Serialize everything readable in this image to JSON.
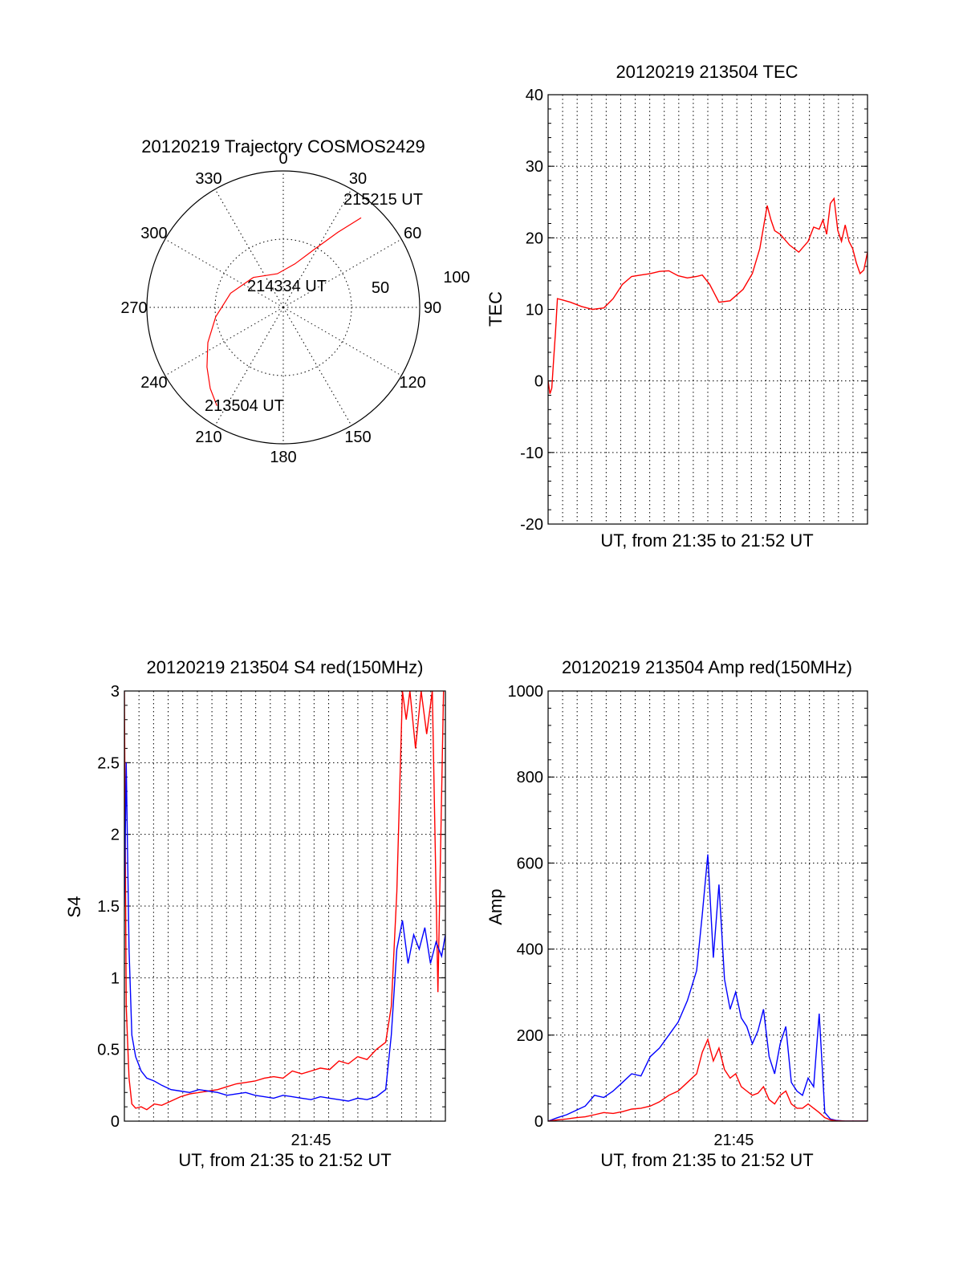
{
  "colors": {
    "red": "#ff0000",
    "blue": "#0000ff",
    "axis": "#000000"
  },
  "chart_data": [
    {
      "id": "trajectory",
      "type": "polar",
      "title": "20120219 Trajectory COSMOS2429",
      "angle_labels": [
        {
          "deg": 0,
          "text": "0"
        },
        {
          "deg": 30,
          "text": "30"
        },
        {
          "deg": 60,
          "text": "60"
        },
        {
          "deg": 90,
          "text": "90"
        },
        {
          "deg": 120,
          "text": "120"
        },
        {
          "deg": 150,
          "text": "150"
        },
        {
          "deg": 180,
          "text": "180"
        },
        {
          "deg": 210,
          "text": "210"
        },
        {
          "deg": 240,
          "text": "240"
        },
        {
          "deg": 270,
          "text": "270"
        },
        {
          "deg": 300,
          "text": "300"
        },
        {
          "deg": 330,
          "text": "330"
        }
      ],
      "radial_labels": [
        {
          "r": 50,
          "text": "50"
        },
        {
          "r": 100,
          "text": "100"
        }
      ],
      "r_max": 100,
      "rings": [
        50
      ],
      "annotations": [
        {
          "text": "215215 UT"
        },
        {
          "text": "214334 UT"
        },
        {
          "text": "213504 UT"
        }
      ],
      "track": {
        "color": "red",
        "points": [
          [
            214,
            87
          ],
          [
            222,
            80
          ],
          [
            232,
            71
          ],
          [
            245,
            61
          ],
          [
            262,
            50
          ],
          [
            285,
            40
          ],
          [
            315,
            31
          ],
          [
            350,
            25
          ],
          [
            15,
            33
          ],
          [
            28,
            48
          ],
          [
            36,
            68
          ],
          [
            41,
            87
          ]
        ]
      }
    },
    {
      "id": "tec",
      "type": "line",
      "title": "20120219 213504 TEC",
      "ylabel": "TEC",
      "xlabel": "UT, from 21:35 to 21:52 UT",
      "x_unit": "minutes after 21:35",
      "xlim": [
        0,
        17.2
      ],
      "ylim": [
        -20,
        40
      ],
      "yticks": [
        -20,
        -10,
        0,
        10,
        20,
        30,
        40
      ],
      "xticks": [],
      "grid": true,
      "series": [
        {
          "color": "red",
          "x": [
            0,
            0.1,
            0.2,
            0.3,
            0.4,
            0.5,
            0.8,
            1.2,
            1.8,
            2.4,
            3.0,
            3.5,
            4.0,
            4.5,
            5.0,
            5.5,
            6.0,
            6.5,
            7.0,
            7.5,
            8.0,
            8.3,
            8.7,
            9.2,
            9.8,
            10.5,
            11.0,
            11.4,
            11.8,
            12.0,
            12.2,
            12.5,
            13.0,
            13.5,
            14.0,
            14.3,
            14.6,
            14.8,
            15.0,
            15.2,
            15.4,
            15.6,
            15.8,
            16.0,
            16.2,
            16.4,
            16.6,
            16.8,
            17.0,
            17.2
          ],
          "values": [
            0,
            -1.8,
            -1,
            3,
            7,
            11.5,
            11.3,
            11,
            10.4,
            10,
            10.2,
            11.5,
            13.5,
            14.6,
            14.8,
            15,
            15.3,
            15.4,
            14.7,
            14.4,
            14.6,
            14.8,
            13.5,
            11,
            11.2,
            12.8,
            15,
            18.5,
            24.5,
            22.5,
            21,
            20.5,
            19,
            18,
            19.5,
            21.5,
            21.2,
            22.5,
            20.5,
            24.8,
            25.5,
            21,
            19.5,
            21.8,
            19.5,
            18.5,
            16.5,
            15,
            15.5,
            18
          ]
        }
      ]
    },
    {
      "id": "s4",
      "type": "line",
      "title": "20120219 213504 S4 red(150MHz)",
      "ylabel": "S4",
      "xlabel": "UT, from 21:35 to 21:52 UT",
      "x_unit": "minutes after 21:35",
      "xlim": [
        0,
        17.2
      ],
      "ylim": [
        0,
        3
      ],
      "yticks": [
        0,
        0.5,
        1,
        1.5,
        2,
        2.5,
        3
      ],
      "ytick_labels": [
        "0",
        "0.5",
        "1",
        "1.5",
        "2",
        "2.5",
        "3"
      ],
      "xticks": [
        {
          "x": 10,
          "text": "21:45"
        }
      ],
      "grid": true,
      "series": [
        {
          "color": "red",
          "x": [
            0,
            0.1,
            0.25,
            0.4,
            0.6,
            0.9,
            1.2,
            1.6,
            2.0,
            2.5,
            3.0,
            3.5,
            4.0,
            4.5,
            5.0,
            5.5,
            6.0,
            6.5,
            7.0,
            7.5,
            8.0,
            8.5,
            9.0,
            9.5,
            10.0,
            10.5,
            11.0,
            11.5,
            12.0,
            12.5,
            13.0,
            13.5,
            14.0,
            14.3,
            14.6,
            14.9,
            15.1,
            15.3,
            15.6,
            15.9,
            16.2,
            16.5,
            16.8,
            17.1
          ],
          "values": [
            3,
            0.8,
            0.3,
            0.12,
            0.09,
            0.1,
            0.08,
            0.12,
            0.11,
            0.14,
            0.17,
            0.19,
            0.2,
            0.21,
            0.22,
            0.24,
            0.26,
            0.27,
            0.28,
            0.3,
            0.31,
            0.3,
            0.35,
            0.33,
            0.35,
            0.37,
            0.36,
            0.42,
            0.4,
            0.45,
            0.43,
            0.5,
            0.55,
            0.8,
            1.6,
            3,
            2.8,
            3,
            2.6,
            3,
            2.7,
            3,
            0.9,
            3
          ]
        },
        {
          "color": "blue",
          "x": [
            0,
            0.1,
            0.25,
            0.4,
            0.6,
            0.9,
            1.2,
            1.6,
            2.0,
            2.5,
            3.0,
            3.5,
            4.0,
            4.5,
            5.0,
            5.5,
            6.0,
            6.5,
            7.0,
            7.5,
            8.0,
            8.5,
            9.0,
            9.5,
            10.0,
            10.5,
            11.0,
            11.5,
            12.0,
            12.5,
            13.0,
            13.5,
            14.0,
            14.3,
            14.6,
            14.9,
            15.2,
            15.5,
            15.8,
            16.1,
            16.4,
            16.7,
            17.0,
            17.2
          ],
          "values": [
            1.5,
            2.5,
            1.2,
            0.6,
            0.45,
            0.35,
            0.3,
            0.28,
            0.25,
            0.22,
            0.21,
            0.2,
            0.22,
            0.21,
            0.2,
            0.18,
            0.19,
            0.2,
            0.18,
            0.17,
            0.16,
            0.18,
            0.17,
            0.16,
            0.15,
            0.17,
            0.16,
            0.15,
            0.14,
            0.16,
            0.15,
            0.17,
            0.22,
            0.6,
            1.2,
            1.4,
            1.1,
            1.3,
            1.2,
            1.35,
            1.1,
            1.25,
            1.15,
            1.3
          ]
        }
      ]
    },
    {
      "id": "amp",
      "type": "line",
      "title": "20120219 213504 Amp red(150MHz)",
      "ylabel": "Amp",
      "xlabel": "UT, from 21:35 to 21:52 UT",
      "x_unit": "minutes after 21:35",
      "xlim": [
        0,
        17.2
      ],
      "ylim": [
        0,
        1000
      ],
      "yticks": [
        0,
        200,
        400,
        600,
        800,
        1000
      ],
      "xticks": [
        {
          "x": 10,
          "text": "21:45"
        }
      ],
      "grid": true,
      "series": [
        {
          "color": "blue",
          "x": [
            0,
            0.5,
            1.0,
            1.5,
            2.0,
            2.5,
            3.0,
            3.5,
            4.0,
            4.5,
            5.0,
            5.5,
            6.0,
            6.5,
            7.0,
            7.5,
            8.0,
            8.3,
            8.6,
            8.9,
            9.2,
            9.5,
            9.8,
            10.1,
            10.4,
            10.7,
            11.0,
            11.3,
            11.6,
            11.9,
            12.2,
            12.5,
            12.8,
            13.1,
            13.4,
            13.7,
            14.0,
            14.3,
            14.6,
            14.9,
            15.2,
            15.5,
            16.0,
            16.5,
            17.2
          ],
          "values": [
            0,
            8,
            15,
            25,
            35,
            60,
            55,
            70,
            90,
            110,
            105,
            150,
            170,
            200,
            230,
            280,
            350,
            480,
            620,
            380,
            550,
            330,
            260,
            300,
            240,
            220,
            180,
            210,
            260,
            150,
            110,
            180,
            220,
            90,
            70,
            60,
            100,
            80,
            250,
            20,
            5,
            2,
            0,
            0,
            0
          ]
        },
        {
          "color": "red",
          "x": [
            0,
            0.5,
            1.0,
            1.5,
            2.0,
            2.5,
            3.0,
            3.5,
            4.0,
            4.5,
            5.0,
            5.5,
            6.0,
            6.5,
            7.0,
            7.5,
            8.0,
            8.3,
            8.6,
            8.9,
            9.2,
            9.5,
            9.8,
            10.1,
            10.4,
            10.7,
            11.0,
            11.3,
            11.6,
            11.9,
            12.2,
            12.5,
            12.8,
            13.1,
            13.4,
            13.7,
            14.0,
            14.3,
            14.6,
            14.9,
            15.2,
            15.5,
            16.0,
            16.5,
            17.2
          ],
          "values": [
            0,
            3,
            5,
            8,
            10,
            15,
            20,
            18,
            22,
            28,
            30,
            35,
            45,
            60,
            70,
            90,
            110,
            160,
            190,
            140,
            170,
            120,
            100,
            110,
            80,
            70,
            60,
            65,
            80,
            50,
            40,
            60,
            70,
            40,
            30,
            30,
            40,
            30,
            20,
            8,
            3,
            1,
            0,
            0,
            0
          ]
        }
      ]
    }
  ]
}
